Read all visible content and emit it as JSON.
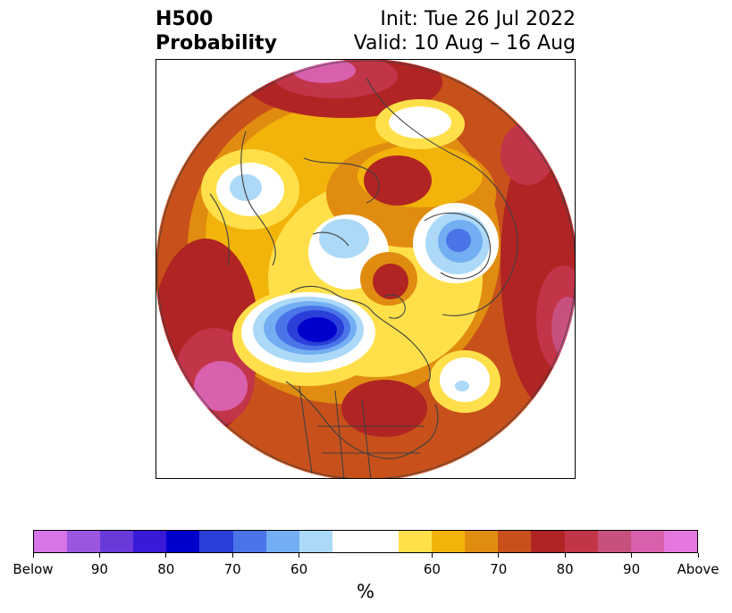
{
  "title": {
    "left_line1": "H500",
    "left_line2": "Probability",
    "right_line1": "Init: Tue 26 Jul 2022",
    "right_line2": "Valid: 10 Aug – 16 Aug"
  },
  "colorbar": {
    "unit": "%",
    "tick_labels": [
      "Below",
      "90",
      "80",
      "70",
      "60",
      "60",
      "70",
      "80",
      "90",
      "Above"
    ],
    "colors": [
      "#d674e8",
      "#9b55e0",
      "#6a3ad8",
      "#3a1ad8",
      "#0000cc",
      "#2a3ed8",
      "#4a74e8",
      "#74aef2",
      "#acd9f8",
      "#ffffff",
      "#ffe04a",
      "#f2b40a",
      "#e08c10",
      "#c8501a",
      "#b02424",
      "#c23448",
      "#c8507e",
      "#d860ac",
      "#e478de"
    ]
  },
  "map": {
    "palette": {
      "ocean_base": "#c8501a",
      "above_orange": "#e08c10",
      "above_gold": "#f2b40a",
      "above_yellow": "#ffe04a",
      "neutral": "#ffffff",
      "above_red": "#b02424",
      "above_rose": "#c23448",
      "above_pink": "#c8507e",
      "above_magenta": "#d860ac",
      "below_light": "#acd9f8",
      "below_sky": "#74aef2",
      "below_blue": "#4a74e8",
      "below_royal": "#2a3ed8",
      "below_deep": "#0000cc",
      "coast": "#404040"
    }
  }
}
